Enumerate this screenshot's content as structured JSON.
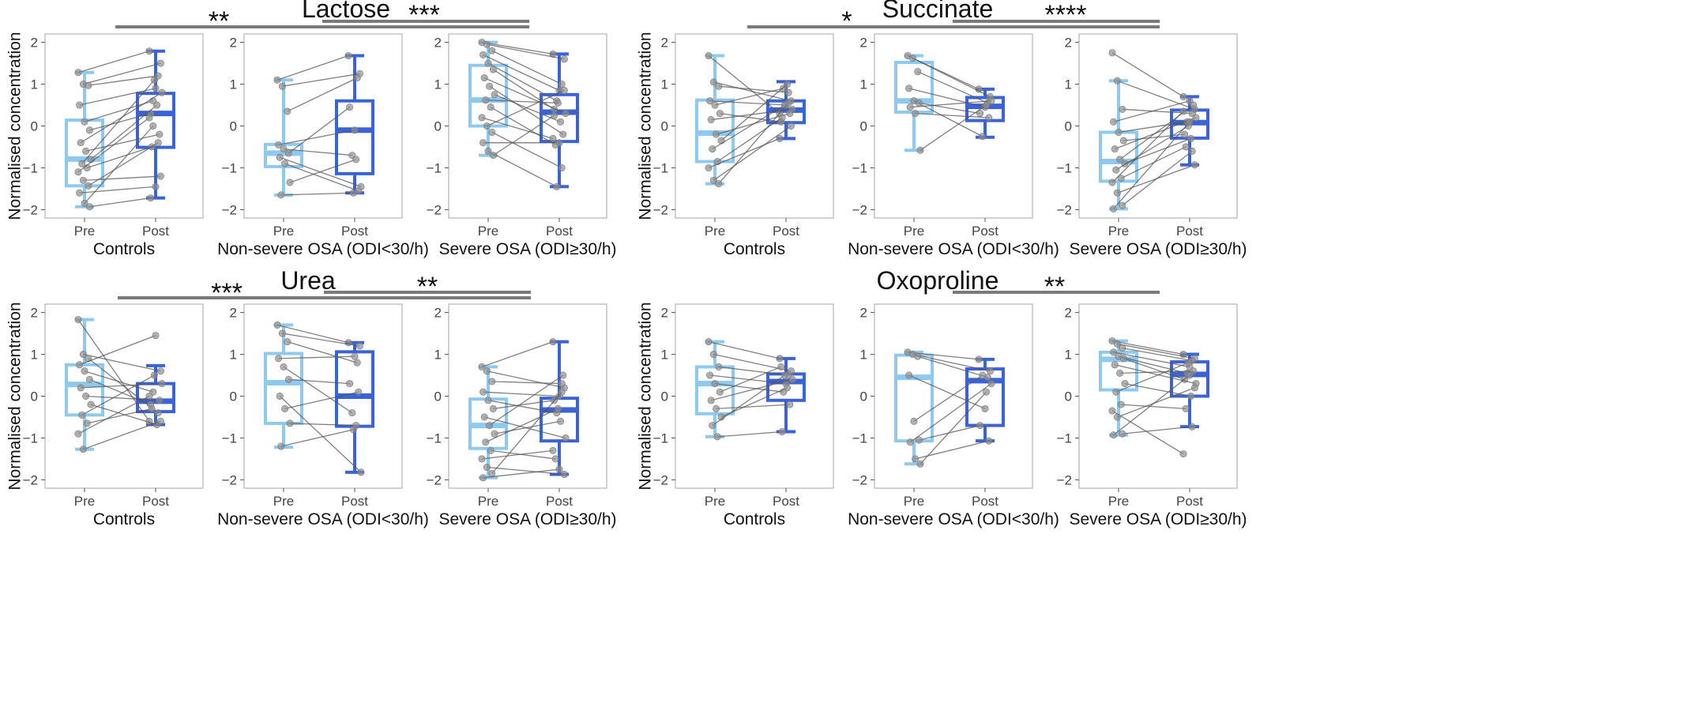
{
  "colors": {
    "pre": "#8ec9f2",
    "post": "#3a63d8",
    "line": "#555555",
    "point": "#8f8f8f",
    "bracket": "#7a7a7a",
    "frame": "#b3b3b3"
  },
  "chart_data": [
    {
      "type": "boxplot",
      "title": "Lactose",
      "ylabel": "Normalised concentration",
      "ylim": [
        -2.2,
        2.2
      ],
      "yticks": [
        -2,
        -1,
        0,
        1,
        2
      ],
      "x_levels": [
        "Pre",
        "Post"
      ],
      "groups": [
        {
          "name": "Controls",
          "pre": {
            "min": -1.93,
            "q1": -1.43,
            "median": -0.79,
            "q3": 0.14,
            "max": 1.28
          },
          "post": {
            "min": -1.72,
            "q1": -0.51,
            "median": 0.3,
            "q3": 0.78,
            "max": 1.79
          },
          "pairs": [
            [
              1.28,
              1.79
            ],
            [
              1.0,
              1.5
            ],
            [
              0.97,
              1.2
            ],
            [
              0.5,
              0.9
            ],
            [
              0.1,
              0.6
            ],
            [
              -0.1,
              0.3
            ],
            [
              -0.4,
              0.8
            ],
            [
              -0.6,
              -0.2
            ],
            [
              -0.8,
              0.5
            ],
            [
              -0.9,
              1.1
            ],
            [
              -1.0,
              -0.5
            ],
            [
              -1.1,
              0.2
            ],
            [
              -1.3,
              -1.2
            ],
            [
              -1.43,
              -0.4
            ],
            [
              -1.6,
              -1.45
            ],
            [
              -1.85,
              0.0
            ],
            [
              -1.93,
              -1.72
            ]
          ]
        },
        {
          "name": "Non-severe OSA (ODI<30/h)",
          "pre": {
            "min": -1.65,
            "q1": -0.97,
            "median": -0.65,
            "q3": -0.44,
            "max": 1.1
          },
          "post": {
            "min": -1.6,
            "q1": -1.14,
            "median": -0.1,
            "q3": 0.6,
            "max": 1.68
          },
          "pairs": [
            [
              1.1,
              1.68
            ],
            [
              0.95,
              1.25
            ],
            [
              0.35,
              1.15
            ],
            [
              -0.45,
              -0.1
            ],
            [
              -0.55,
              -0.7
            ],
            [
              -0.65,
              0.45
            ],
            [
              -0.75,
              -1.45
            ],
            [
              -0.9,
              -1.55
            ],
            [
              -1.35,
              -0.8
            ],
            [
              -1.65,
              -1.6
            ]
          ]
        },
        {
          "name": "Severe OSA (ODI≥30/h)",
          "pre": {
            "min": -0.7,
            "q1": 0.0,
            "median": 0.62,
            "q3": 1.45,
            "max": 2.0
          },
          "post": {
            "min": -1.45,
            "q1": -0.37,
            "median": 0.33,
            "q3": 0.75,
            "max": 1.72
          },
          "pairs": [
            [
              2.0,
              1.72
            ],
            [
              1.95,
              1.6
            ],
            [
              1.8,
              1.0
            ],
            [
              1.7,
              0.85
            ],
            [
              1.5,
              0.6
            ],
            [
              1.35,
              0.4
            ],
            [
              1.15,
              0.3
            ],
            [
              0.95,
              -0.2
            ],
            [
              0.75,
              0.1
            ],
            [
              0.62,
              0.55
            ],
            [
              0.45,
              -0.45
            ],
            [
              0.2,
              -0.3
            ],
            [
              0.0,
              0.85
            ],
            [
              -0.15,
              -1.0
            ],
            [
              -0.4,
              -0.4
            ],
            [
              -0.6,
              -1.45
            ],
            [
              -0.7,
              0.25
            ]
          ]
        }
      ],
      "comparisons": [
        {
          "label": "**",
          "from_group": 0,
          "to_group": 2
        },
        {
          "label": "***",
          "from_group": 1,
          "to_group": 2
        }
      ]
    },
    {
      "type": "boxplot",
      "title": "Succinate",
      "ylabel": "Normalised concentration",
      "ylim": [
        -2.2,
        2.2
      ],
      "yticks": [
        -2,
        -1,
        0,
        1,
        2
      ],
      "x_levels": [
        "Pre",
        "Post"
      ],
      "groups": [
        {
          "name": "Controls",
          "pre": {
            "min": -1.38,
            "q1": -0.85,
            "median": -0.17,
            "q3": 0.62,
            "max": 1.68
          },
          "post": {
            "min": -0.3,
            "q1": 0.08,
            "median": 0.38,
            "q3": 0.6,
            "max": 1.06
          },
          "pairs": [
            [
              1.68,
              0.3
            ],
            [
              1.05,
              0.6
            ],
            [
              0.95,
              0.8
            ],
            [
              0.6,
              0.5
            ],
            [
              0.5,
              0.9
            ],
            [
              0.3,
              0.1
            ],
            [
              0.15,
              0.4
            ],
            [
              -0.2,
              0.3
            ],
            [
              -0.35,
              1.0
            ],
            [
              -0.55,
              0.5
            ],
            [
              -0.85,
              0.2
            ],
            [
              -1.0,
              -0.3
            ],
            [
              -1.3,
              0.0
            ],
            [
              -1.38,
              0.55
            ]
          ]
        },
        {
          "name": "Non-severe OSA (ODI<30/h)",
          "pre": {
            "min": -0.58,
            "q1": 0.33,
            "median": 0.6,
            "q3": 1.52,
            "max": 1.68
          },
          "post": {
            "min": -0.27,
            "q1": 0.13,
            "median": 0.47,
            "q3": 0.68,
            "max": 0.88
          },
          "pairs": [
            [
              1.68,
              0.88
            ],
            [
              1.62,
              0.7
            ],
            [
              1.3,
              0.55
            ],
            [
              0.9,
              0.45
            ],
            [
              0.6,
              -0.25
            ],
            [
              0.55,
              0.3
            ],
            [
              0.45,
              0.6
            ],
            [
              0.3,
              0.2
            ],
            [
              -0.58,
              0.5
            ]
          ]
        },
        {
          "name": "Severe OSA (ODI≥30/h)",
          "pre": {
            "min": -1.98,
            "q1": -1.32,
            "median": -0.85,
            "q3": -0.15,
            "max": 1.08
          },
          "post": {
            "min": -0.93,
            "q1": -0.29,
            "median": 0.08,
            "q3": 0.38,
            "max": 0.7
          },
          "pairs": [
            [
              1.75,
              0.7
            ],
            [
              1.08,
              0.4
            ],
            [
              0.4,
              0.3
            ],
            [
              0.1,
              0.6
            ],
            [
              -0.15,
              0.1
            ],
            [
              -0.35,
              -0.2
            ],
            [
              -0.55,
              0.2
            ],
            [
              -0.8,
              0.5
            ],
            [
              -0.9,
              -0.3
            ],
            [
              -1.05,
              0.0
            ],
            [
              -1.25,
              -0.5
            ],
            [
              -1.35,
              0.35
            ],
            [
              -1.6,
              -0.93
            ],
            [
              -1.9,
              -0.6
            ],
            [
              -1.98,
              0.1
            ]
          ]
        }
      ],
      "comparisons": [
        {
          "label": "*",
          "from_group": 0,
          "to_group": 2
        },
        {
          "label": "****",
          "from_group": 1,
          "to_group": 2
        }
      ]
    },
    {
      "type": "boxplot",
      "title": "Urea",
      "ylabel": "Normalised concentration",
      "ylim": [
        -2.2,
        2.2
      ],
      "yticks": [
        -2,
        -1,
        0,
        1,
        2
      ],
      "x_levels": [
        "Pre",
        "Post"
      ],
      "groups": [
        {
          "name": "Controls",
          "pre": {
            "min": -1.27,
            "q1": -0.45,
            "median": 0.28,
            "q3": 0.75,
            "max": 1.83
          },
          "post": {
            "min": -0.68,
            "q1": -0.37,
            "median": -0.12,
            "q3": 0.3,
            "max": 0.73
          },
          "pairs": [
            [
              1.83,
              -0.6
            ],
            [
              1.0,
              0.6
            ],
            [
              0.9,
              -0.4
            ],
            [
              0.75,
              1.45
            ],
            [
              0.6,
              0.1
            ],
            [
              0.4,
              -0.2
            ],
            [
              0.2,
              0.3
            ],
            [
              0.0,
              -0.1
            ],
            [
              -0.2,
              -0.68
            ],
            [
              -0.45,
              0.5
            ],
            [
              -0.65,
              -0.3
            ],
            [
              -0.9,
              0.0
            ],
            [
              -1.27,
              -0.6
            ]
          ]
        },
        {
          "name": "Non-severe OSA (ODI<30/h)",
          "pre": {
            "min": -1.22,
            "q1": -0.65,
            "median": 0.32,
            "q3": 1.02,
            "max": 1.7
          },
          "post": {
            "min": -1.82,
            "q1": -0.72,
            "median": 0.0,
            "q3": 1.06,
            "max": 1.28
          },
          "pairs": [
            [
              1.7,
              1.28
            ],
            [
              1.5,
              1.2
            ],
            [
              1.3,
              0.8
            ],
            [
              0.9,
              0.95
            ],
            [
              0.7,
              -0.4
            ],
            [
              0.4,
              0.3
            ],
            [
              0.0,
              -1.82
            ],
            [
              -0.3,
              0.1
            ],
            [
              -0.65,
              -0.7
            ],
            [
              -1.2,
              -0.8
            ]
          ]
        },
        {
          "name": "Severe OSA (ODI≥30/h)",
          "pre": {
            "min": -1.95,
            "q1": -1.25,
            "median": -0.7,
            "q3": -0.07,
            "max": 0.7
          },
          "post": {
            "min": -1.87,
            "q1": -1.07,
            "median": -0.33,
            "q3": -0.05,
            "max": 1.3
          },
          "pairs": [
            [
              0.7,
              1.3
            ],
            [
              0.6,
              0.2
            ],
            [
              0.35,
              0.3
            ],
            [
              0.1,
              0.0
            ],
            [
              -0.1,
              -0.4
            ],
            [
              -0.3,
              -0.1
            ],
            [
              -0.5,
              -1.0
            ],
            [
              -0.7,
              0.5
            ],
            [
              -0.9,
              -0.6
            ],
            [
              -1.1,
              -0.3
            ],
            [
              -1.3,
              -1.5
            ],
            [
              -1.5,
              -1.3
            ],
            [
              -1.7,
              -1.87
            ],
            [
              -1.85,
              0.1
            ],
            [
              -1.95,
              -1.75
            ]
          ]
        }
      ],
      "comparisons": [
        {
          "label": "***",
          "from_group": 0,
          "to_group": 2
        },
        {
          "label": "**",
          "from_group": 1,
          "to_group": 2
        }
      ]
    },
    {
      "type": "boxplot",
      "title": "Oxoproline",
      "ylabel": "Normalised concentration",
      "ylim": [
        -2.2,
        2.2
      ],
      "yticks": [
        -2,
        -1,
        0,
        1,
        2
      ],
      "x_levels": [
        "Pre",
        "Post"
      ],
      "groups": [
        {
          "name": "Controls",
          "pre": {
            "min": -0.97,
            "q1": -0.42,
            "median": 0.3,
            "q3": 0.7,
            "max": 1.3
          },
          "post": {
            "min": -0.85,
            "q1": -0.1,
            "median": 0.35,
            "q3": 0.53,
            "max": 0.9
          },
          "pairs": [
            [
              1.3,
              0.9
            ],
            [
              1.0,
              0.6
            ],
            [
              0.7,
              0.5
            ],
            [
              0.5,
              0.3
            ],
            [
              0.3,
              0.1
            ],
            [
              0.1,
              0.7
            ],
            [
              -0.1,
              0.4
            ],
            [
              -0.3,
              -0.2
            ],
            [
              -0.5,
              0.2
            ],
            [
              -0.7,
              0.5
            ],
            [
              -0.97,
              -0.85
            ]
          ]
        },
        {
          "name": "Non-severe OSA (ODI<30/h)",
          "pre": {
            "min": -1.62,
            "q1": -1.07,
            "median": 0.45,
            "q3": 0.98,
            "max": 1.05
          },
          "post": {
            "min": -1.07,
            "q1": -0.7,
            "median": 0.37,
            "q3": 0.65,
            "max": 0.88
          },
          "pairs": [
            [
              1.05,
              0.88
            ],
            [
              1.0,
              0.6
            ],
            [
              0.95,
              0.45
            ],
            [
              0.5,
              -0.3
            ],
            [
              -0.6,
              0.5
            ],
            [
              -1.05,
              -0.7
            ],
            [
              -1.1,
              0.3
            ],
            [
              -1.5,
              -1.07
            ],
            [
              -1.62,
              0.1
            ]
          ]
        },
        {
          "name": "Severe OSA (ODI≥30/h)",
          "pre": {
            "min": -0.93,
            "q1": 0.15,
            "median": 0.88,
            "q3": 1.05,
            "max": 1.32
          },
          "post": {
            "min": -0.73,
            "q1": 0.0,
            "median": 0.52,
            "q3": 0.82,
            "max": 1.0
          },
          "pairs": [
            [
              1.32,
              1.0
            ],
            [
              1.25,
              0.9
            ],
            [
              1.15,
              0.85
            ],
            [
              1.05,
              0.7
            ],
            [
              0.95,
              0.55
            ],
            [
              0.9,
              0.4
            ],
            [
              0.75,
              0.3
            ],
            [
              0.55,
              0.6
            ],
            [
              0.3,
              0.0
            ],
            [
              0.1,
              0.8
            ],
            [
              -0.2,
              -0.3
            ],
            [
              -0.35,
              -1.38
            ],
            [
              -0.5,
              0.2
            ],
            [
              -0.9,
              -0.73
            ],
            [
              -0.93,
              0.5
            ]
          ]
        }
      ],
      "comparisons": [
        {
          "label": "**",
          "from_group": 1,
          "to_group": 2
        }
      ]
    }
  ]
}
